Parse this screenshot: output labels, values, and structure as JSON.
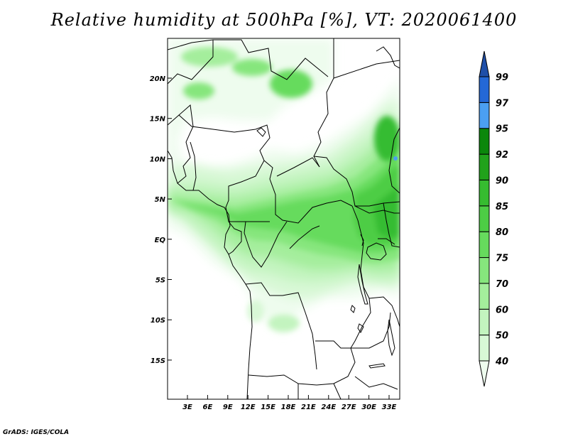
{
  "title": "Relative humidity at 500hPa [%], VT: 2020061400",
  "credit": "GrADS: IGES/COLA",
  "map": {
    "variable": "Relative humidity",
    "level": "500hPa",
    "units": "%",
    "valid_time": "2020061400",
    "lat_labels": [
      "20N",
      "15N",
      "10N",
      "5N",
      "EQ",
      "5S",
      "10S",
      "15S"
    ],
    "lon_labels": [
      "3E",
      "6E",
      "9E",
      "12E",
      "15E",
      "18E",
      "21E",
      "24E",
      "27E",
      "30E",
      "33E"
    ],
    "colorbar": {
      "levels": [
        "40",
        "50",
        "60",
        "70",
        "75",
        "80",
        "85",
        "90",
        "92",
        "95",
        "97",
        "99"
      ],
      "colors": [
        "#eefcee",
        "#d8f8d6",
        "#c3f4bf",
        "#a4ee9c",
        "#86e67d",
        "#66db5d",
        "#4dcd45",
        "#36bc30",
        "#21a21b",
        "#0b870b",
        "#4b9ff2",
        "#2468d6",
        "#1f4fa8"
      ]
    }
  }
}
